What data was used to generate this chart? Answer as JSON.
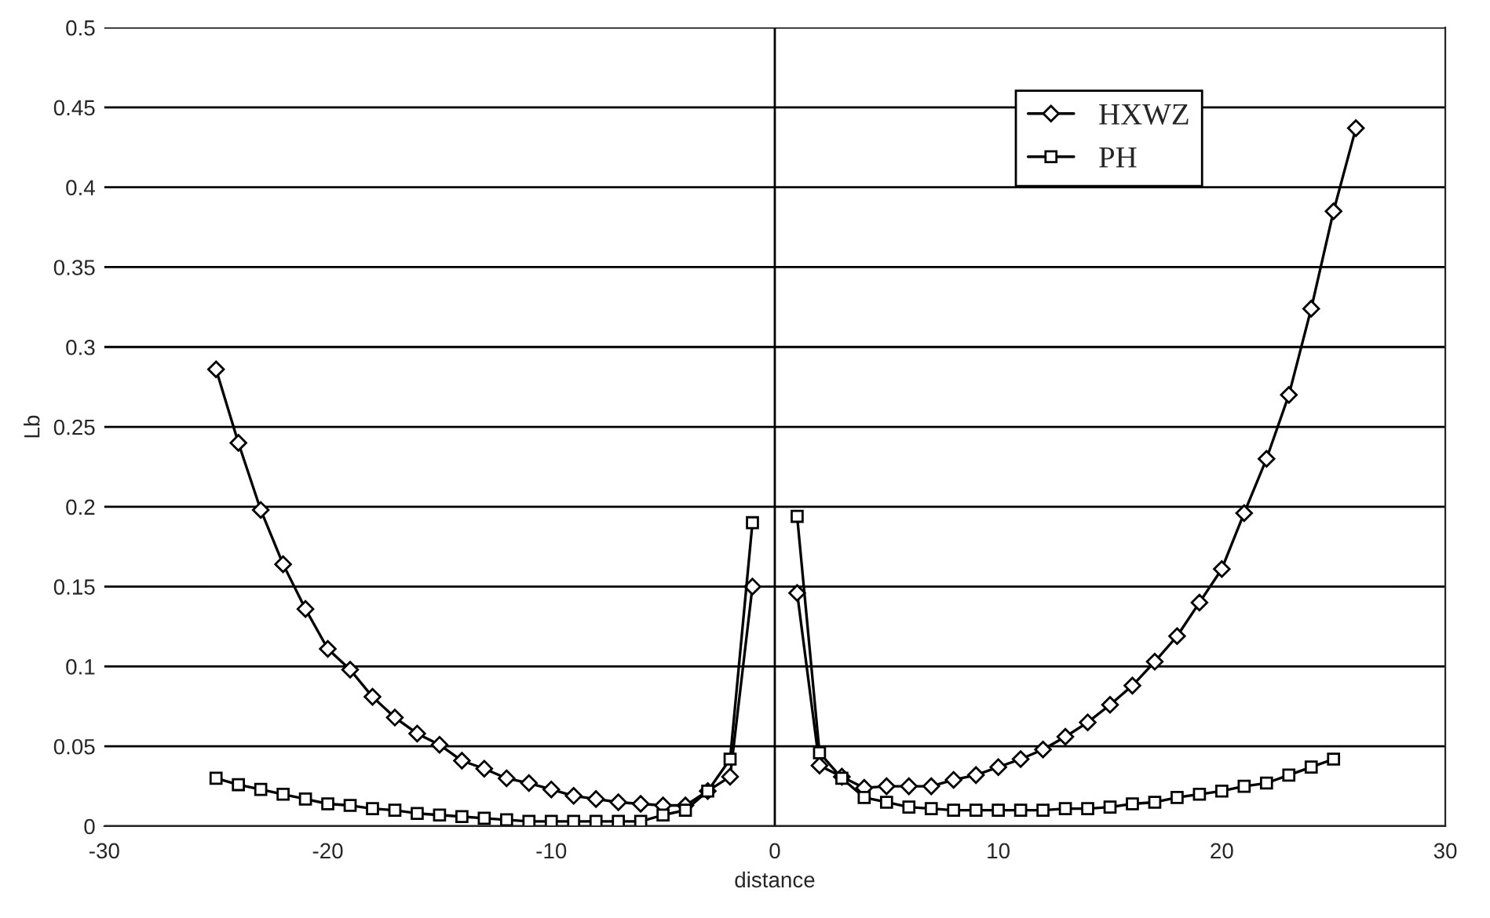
{
  "chart_data": {
    "type": "line",
    "xlabel": "distance",
    "ylabel": "Lb",
    "x": [
      -25,
      -24,
      -23,
      -22,
      -21,
      -20,
      -19,
      -18,
      -17,
      -16,
      -15,
      -14,
      -13,
      -12,
      -11,
      -10,
      -9,
      -8,
      -7,
      -6,
      -5,
      -4,
      -3,
      -2,
      -1,
      0,
      1,
      2,
      3,
      4,
      5,
      6,
      7,
      8,
      9,
      10,
      11,
      12,
      13,
      14,
      15,
      16,
      17,
      18,
      19,
      20,
      21,
      22,
      23,
      24,
      25,
      26
    ],
    "series": [
      {
        "name": "HXWZ",
        "color": "#000000",
        "marker": "diamond",
        "values": [
          0.286,
          0.24,
          0.198,
          0.164,
          0.136,
          0.111,
          0.098,
          0.081,
          0.068,
          0.058,
          0.051,
          0.041,
          0.036,
          0.03,
          0.027,
          0.023,
          0.019,
          0.017,
          0.015,
          0.014,
          0.013,
          0.013,
          0.022,
          0.031,
          0.15,
          null,
          0.146,
          0.038,
          0.031,
          0.024,
          0.025,
          0.025,
          0.025,
          0.029,
          0.032,
          0.037,
          0.042,
          0.048,
          0.056,
          0.065,
          0.076,
          0.088,
          0.103,
          0.119,
          0.14,
          0.161,
          0.196,
          0.23,
          0.27,
          0.324,
          0.385,
          0.437
        ]
      },
      {
        "name": "PH",
        "color": "#000000",
        "marker": "square",
        "values": [
          0.03,
          0.026,
          0.023,
          0.02,
          0.017,
          0.014,
          0.013,
          0.011,
          0.01,
          0.008,
          0.007,
          0.006,
          0.005,
          0.004,
          0.003,
          0.003,
          0.003,
          0.003,
          0.003,
          0.003,
          0.007,
          0.01,
          0.022,
          0.042,
          0.19,
          null,
          0.194,
          0.046,
          0.03,
          0.018,
          0.015,
          0.012,
          0.011,
          0.01,
          0.01,
          0.01,
          0.01,
          0.01,
          0.011,
          0.011,
          0.012,
          0.014,
          0.015,
          0.018,
          0.02,
          0.022,
          0.025,
          0.027,
          0.032,
          0.037,
          0.042,
          null
        ]
      }
    ],
    "xlim": [
      -30,
      30
    ],
    "xticks": [
      -30,
      -20,
      -10,
      0,
      10,
      20,
      30
    ],
    "ylim": [
      0,
      0.5
    ],
    "yticks": [
      0,
      0.05,
      0.1,
      0.15,
      0.2,
      0.25,
      0.3,
      0.35,
      0.4,
      0.45,
      0.5
    ],
    "ref_lines": [
      {
        "axis": "x",
        "value": 0,
        "color": "#000000",
        "line_style": "solid"
      }
    ],
    "grid": "y",
    "legend": "top right"
  }
}
